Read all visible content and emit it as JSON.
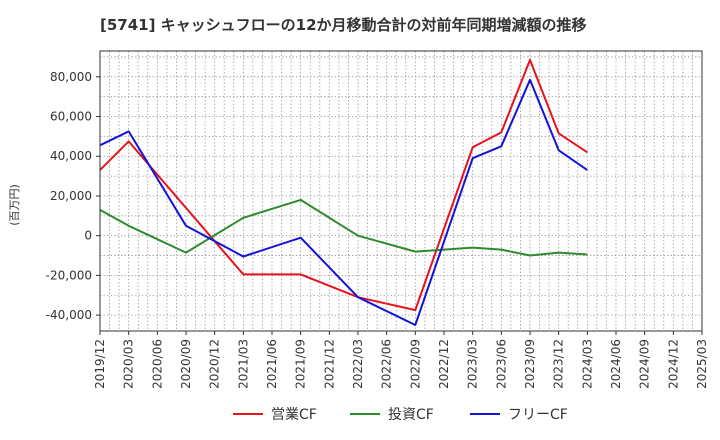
{
  "chart_data": {
    "type": "line",
    "title": "[5741]  キャッシュフローの12か月移動合計の対前年同期増減額の推移",
    "ylabel": "(百万円)",
    "xlabel": "",
    "ylim": [
      -48000,
      93000
    ],
    "yticks": [
      -40000,
      -20000,
      0,
      20000,
      40000,
      60000,
      80000
    ],
    "ytick_labels": [
      "-40,000",
      "-20,000",
      "0",
      "20,000",
      "40,000",
      "60,000",
      "80,000"
    ],
    "x": [
      "2019/12",
      "2020/03",
      "2020/06",
      "2020/09",
      "2020/12",
      "2021/03",
      "2021/06",
      "2021/09",
      "2021/12",
      "2022/03",
      "2022/06",
      "2022/09",
      "2022/12",
      "2023/03",
      "2023/06",
      "2023/09",
      "2023/12",
      "2024/03",
      "2024/06",
      "2024/09",
      "2024/12",
      "2025/03"
    ],
    "grid": true,
    "legend_position": "bottom",
    "series": [
      {
        "name": "営業CF",
        "color": "#e8121c",
        "values": [
          33000,
          47500,
          null,
          null,
          null,
          -19500,
          null,
          -19500,
          null,
          -31000,
          null,
          -37500,
          null,
          44500,
          52000,
          88500,
          51500,
          42000,
          null,
          null,
          null,
          null
        ]
      },
      {
        "name": "投資CF",
        "color": "#2d8a2d",
        "values": [
          13000,
          5000,
          null,
          -8500,
          null,
          9000,
          null,
          18000,
          null,
          0,
          null,
          -8000,
          null,
          -6000,
          -7000,
          -10000,
          -8500,
          -9500,
          null,
          null,
          null,
          null
        ]
      },
      {
        "name": "フリーCF",
        "color": "#1414d8",
        "values": [
          45500,
          52500,
          null,
          5000,
          null,
          -10500,
          null,
          -1000,
          null,
          -31000,
          null,
          -45000,
          null,
          39000,
          45000,
          78500,
          43000,
          33000,
          null,
          null,
          null,
          null
        ]
      }
    ]
  }
}
